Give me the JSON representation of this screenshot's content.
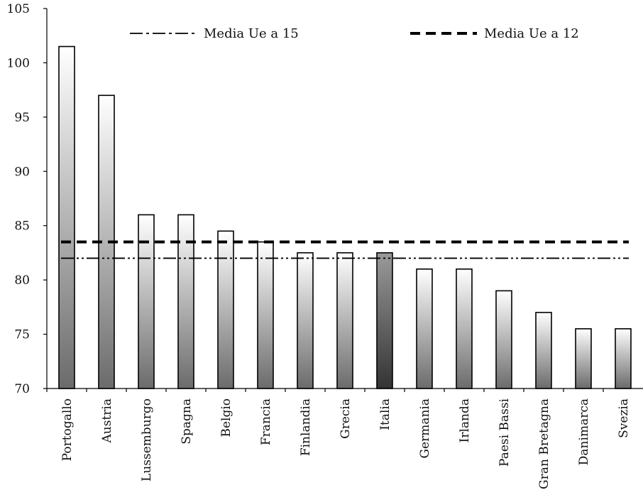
{
  "chart_data": {
    "type": "bar",
    "categories": [
      "Portogallo",
      "Austria",
      "Lussemburgo",
      "Spagna",
      "Belgio",
      "Francia",
      "Finlandia",
      "Grecia",
      "Italia",
      "Germania",
      "Irlanda",
      "Paesi Bassi",
      "Gran Bretagna",
      "Danimarca",
      "Svezia"
    ],
    "values": [
      101.5,
      97,
      86,
      86,
      84.5,
      83.5,
      82.5,
      82.5,
      82.5,
      81,
      81,
      79,
      77,
      75.5,
      75.5
    ],
    "highlight": "Italia",
    "ylim": [
      70,
      105
    ],
    "yticks": [
      "70",
      "75",
      "80",
      "85",
      "90",
      "95",
      "100",
      "105"
    ],
    "reference_lines": [
      {
        "name": "Media Ue a 15",
        "value": 82,
        "style": "dash-dot-dot"
      },
      {
        "name": "Media Ue a 12",
        "value": 83.5,
        "style": "thick-dashed"
      }
    ],
    "legend_placement": "top",
    "grid": false,
    "colors": {
      "bar_gradient_top": "#ffffff",
      "bar_gradient_bottom": "#6b6b6b",
      "highlight_gradient_top": "#9a9a9a",
      "highlight_gradient_bottom": "#333333",
      "axis": "#000000"
    }
  }
}
